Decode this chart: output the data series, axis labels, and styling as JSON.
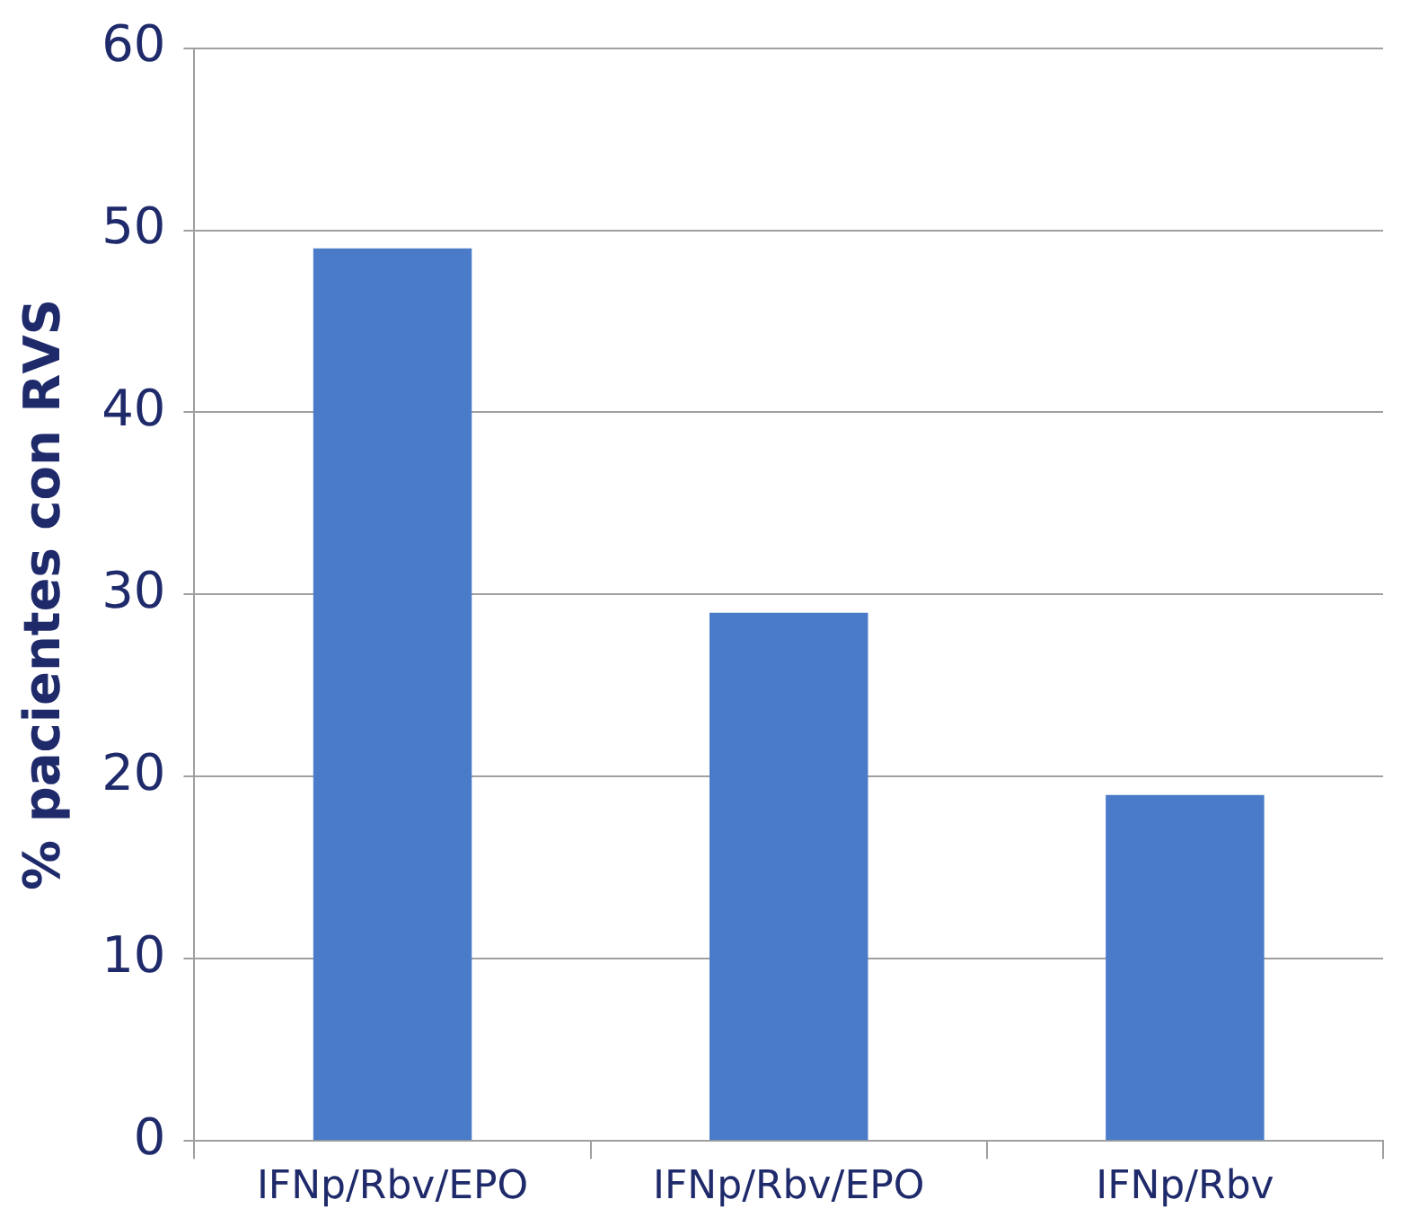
{
  "chart_data": {
    "type": "bar",
    "ylabel": "% pacientes con RVS",
    "categories": [
      "IFNp/Rbv/EPO",
      "IFNp/Rbv/EPO",
      "IFNp/Rbv"
    ],
    "values": [
      49,
      29,
      19
    ],
    "color": "#4a7bc8",
    "ylim": [
      0,
      60
    ],
    "yticks": [
      0,
      10,
      20,
      30,
      40,
      50,
      60
    ],
    "grid": "y"
  }
}
